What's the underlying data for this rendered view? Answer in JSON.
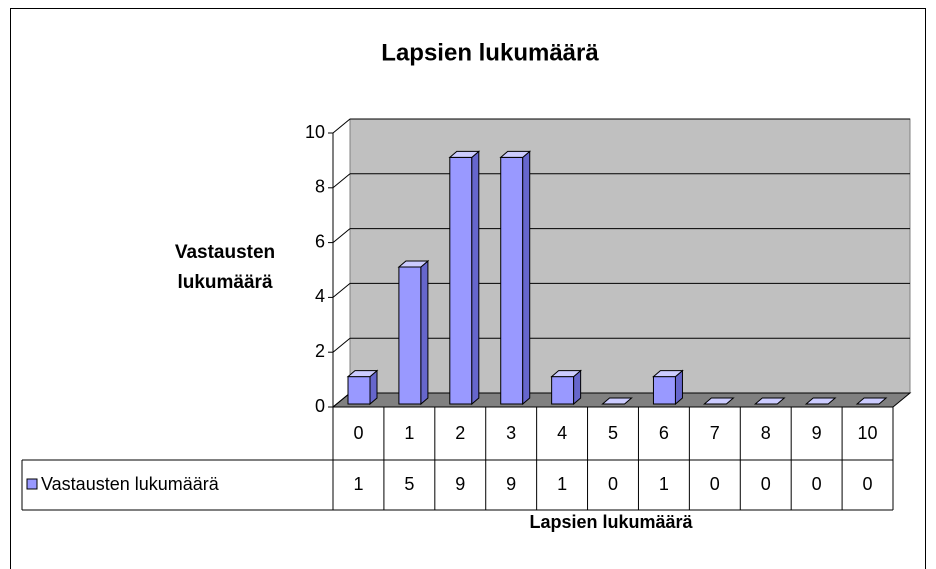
{
  "chart_data": {
    "type": "bar3d",
    "title": "Lapsien lukumäärä",
    "y_label": "Vastausten lukumäärä",
    "x_label": "Lapsien lukumäärä",
    "categories": [
      "0",
      "1",
      "2",
      "3",
      "4",
      "5",
      "6",
      "7",
      "8",
      "9",
      "10"
    ],
    "series": [
      {
        "name": "Vastausten lukumäärä",
        "color": "#9999ff",
        "values": [
          1,
          5,
          9,
          9,
          1,
          0,
          1,
          0,
          0,
          0,
          0
        ]
      }
    ],
    "ylim": [
      0,
      10
    ],
    "yticks": [
      0,
      2,
      4,
      6,
      8,
      10
    ],
    "grid": true,
    "data_table": true
  }
}
